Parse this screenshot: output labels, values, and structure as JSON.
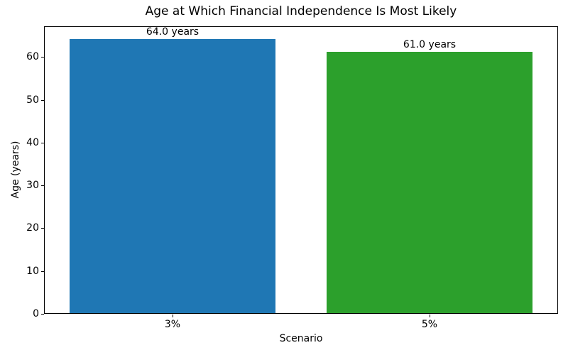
{
  "figure": {
    "background": "#ffffff",
    "spine_color": "#000000",
    "text_color": "#000000"
  },
  "chart_data": {
    "type": "bar",
    "title": "Age at Which Financial Independence Is Most Likely",
    "xlabel": "Scenario",
    "ylabel": "Age (years)",
    "categories": [
      "3%",
      "5%"
    ],
    "values": [
      64.0,
      61.0
    ],
    "bar_labels": [
      "64.0 years",
      "61.0 years"
    ],
    "bar_colors": [
      "#1f77b4",
      "#2ca02c"
    ],
    "ylim": [
      0,
      67.2
    ],
    "yticks": [
      0,
      10,
      20,
      30,
      40,
      50,
      60
    ],
    "grid": false,
    "legend_position": "none",
    "bar_width_fraction": 0.8
  }
}
